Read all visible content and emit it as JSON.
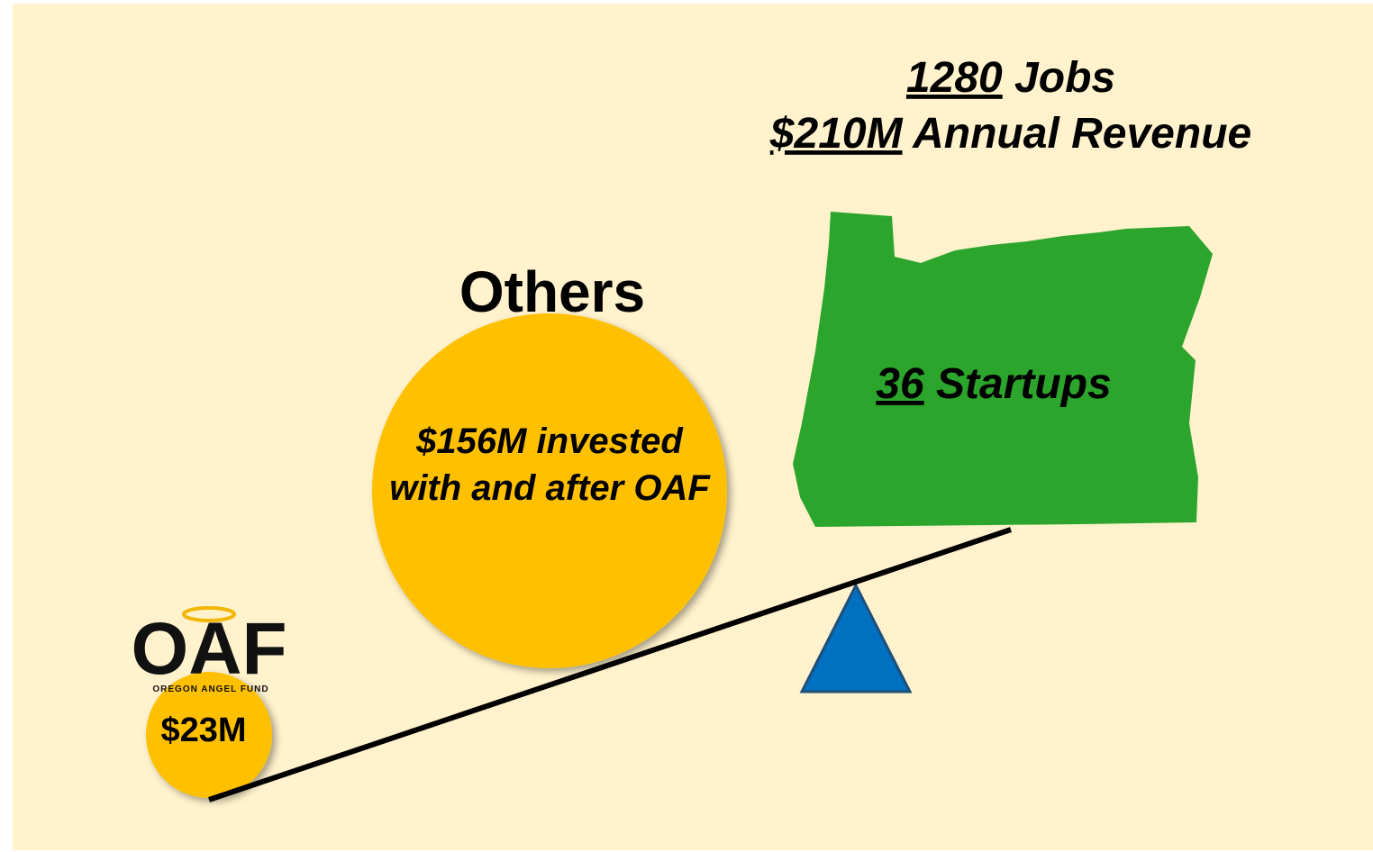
{
  "headline": {
    "jobs": {
      "number": "1280",
      "label": "Jobs"
    },
    "revenue": {
      "number": "$210M",
      "label": "Annual Revenue"
    }
  },
  "others": {
    "title": "Others",
    "lines": [
      "$156M invested",
      "with and after OAF"
    ]
  },
  "state": {
    "number": "36",
    "label": "Startups"
  },
  "logo": {
    "name": "OAF",
    "tagline": "OREGON ANGEL FUND"
  },
  "oaf_amount": "$23M"
}
